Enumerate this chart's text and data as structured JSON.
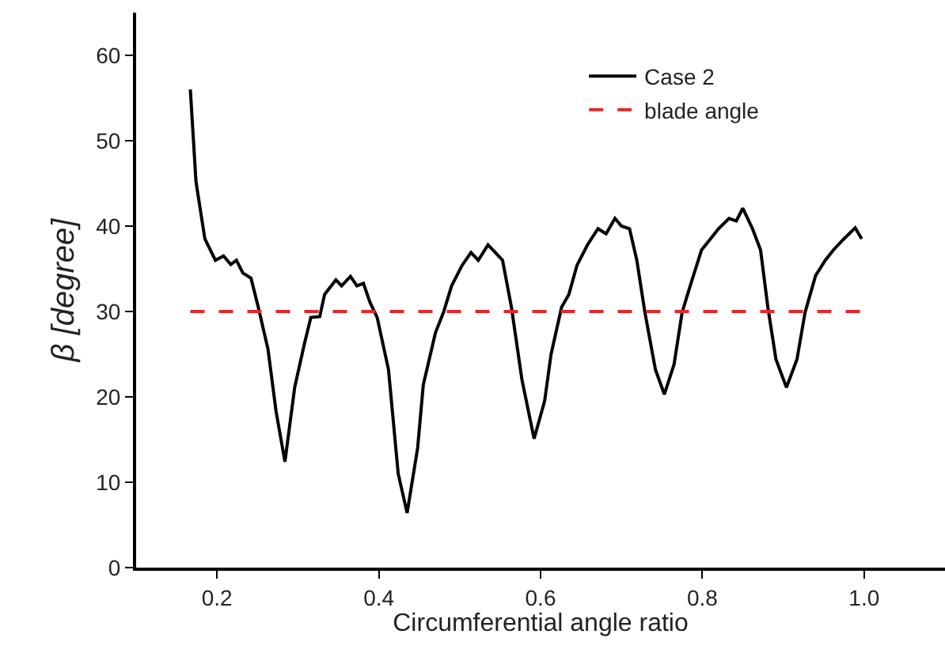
{
  "chart_data": {
    "type": "line",
    "xlabel": "Circumferential angle ratio",
    "ylabel": "β [degree]",
    "xlim": [
      0.1,
      1.1
    ],
    "xticks": [
      0.2,
      0.4,
      0.6,
      0.8,
      {
        "value": 1,
        "label": "1.0"
      }
    ],
    "ylim": [
      0,
      65
    ],
    "yticks": [
      0,
      10,
      20,
      30,
      40,
      50,
      60
    ],
    "grid": false,
    "legend": "top right",
    "marker": "none",
    "series": [
      {
        "name": "Case 2",
        "color": "#000000",
        "line_style": "solid",
        "x": [
          0.167,
          0.174,
          0.185,
          0.198,
          0.208,
          0.217,
          0.224,
          0.232,
          0.242,
          0.251,
          0.263,
          0.273,
          0.284,
          0.296,
          0.308,
          0.316,
          0.327,
          0.333,
          0.347,
          0.354,
          0.365,
          0.373,
          0.381,
          0.389,
          0.398,
          0.412,
          0.424,
          0.435,
          0.448,
          0.455,
          0.47,
          0.48,
          0.49,
          0.503,
          0.514,
          0.523,
          0.535,
          0.541,
          0.553,
          0.564,
          0.577,
          0.592,
          0.605,
          0.613,
          0.626,
          0.635,
          0.645,
          0.658,
          0.671,
          0.681,
          0.692,
          0.7,
          0.71,
          0.719,
          0.729,
          0.742,
          0.753,
          0.765,
          0.775,
          0.784,
          0.799,
          0.81,
          0.82,
          0.833,
          0.842,
          0.85,
          0.862,
          0.872,
          0.881,
          0.891,
          0.904,
          0.917,
          0.927,
          0.94,
          0.952,
          0.962,
          0.975,
          0.989,
          0.997
        ],
        "values": [
          56.0,
          45.2,
          38.5,
          36.0,
          36.5,
          35.5,
          36.0,
          34.5,
          33.9,
          30.5,
          25.6,
          18.3,
          12.4,
          21.1,
          26.2,
          29.3,
          29.4,
          32.0,
          33.7,
          33.0,
          34.1,
          33.0,
          33.3,
          31.1,
          29.3,
          23.2,
          11.0,
          6.4,
          14.0,
          21.4,
          27.5,
          29.9,
          33.0,
          35.4,
          36.9,
          36.0,
          37.8,
          37.2,
          36.0,
          30.5,
          22.0,
          15.1,
          19.5,
          25.0,
          30.5,
          32.0,
          35.4,
          37.8,
          39.7,
          39.1,
          40.9,
          40.0,
          39.7,
          36.0,
          29.9,
          23.2,
          20.3,
          23.8,
          29.9,
          32.7,
          37.2,
          38.5,
          39.7,
          40.9,
          40.6,
          42.1,
          39.7,
          37.2,
          30.5,
          24.4,
          21.1,
          24.4,
          29.9,
          34.2,
          36.0,
          37.2,
          38.5,
          39.8,
          38.5
        ]
      },
      {
        "name": "blade angle",
        "color": "#e8262a",
        "line_style": "dashed",
        "x": [
          0.167,
          1.0
        ],
        "values": [
          30,
          30
        ]
      }
    ]
  }
}
